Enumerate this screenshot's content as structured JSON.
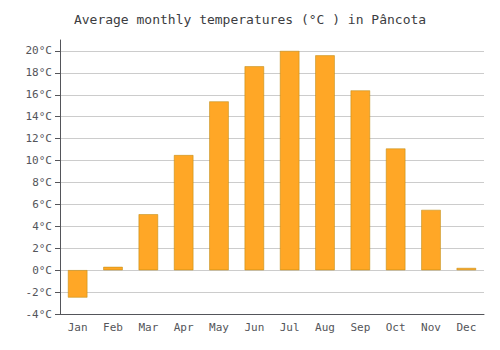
{
  "chart_data": {
    "type": "bar",
    "title": "Average monthly temperatures (°C ) in Pâncota",
    "categories": [
      "Jan",
      "Feb",
      "Mar",
      "Apr",
      "May",
      "Jun",
      "Jul",
      "Aug",
      "Sep",
      "Oct",
      "Nov",
      "Dec"
    ],
    "values": [
      -2.5,
      0.3,
      5.1,
      10.5,
      15.4,
      18.6,
      20.0,
      19.6,
      16.4,
      11.1,
      5.5,
      0.2
    ],
    "color": "#FFA726",
    "ylim": [
      -4,
      21
    ],
    "yticks": [
      {
        "value": -4,
        "label": "-4°C"
      },
      {
        "value": -2,
        "label": "-2°C"
      },
      {
        "value": 0,
        "label": "0°C"
      },
      {
        "value": 2,
        "label": "2°C"
      },
      {
        "value": 4,
        "label": "4°C"
      },
      {
        "value": 6,
        "label": "6°C"
      },
      {
        "value": 8,
        "label": "8°C"
      },
      {
        "value": 10,
        "label": "10°C"
      },
      {
        "value": 12,
        "label": "12°C"
      },
      {
        "value": 14,
        "label": "14°C"
      },
      {
        "value": 16,
        "label": "16°C"
      },
      {
        "value": 18,
        "label": "18°C"
      },
      {
        "value": 20,
        "label": "20°C"
      }
    ],
    "grid": true
  }
}
